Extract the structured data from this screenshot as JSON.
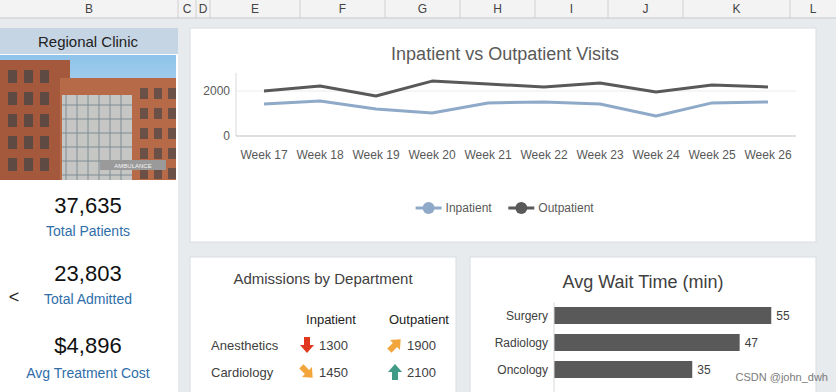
{
  "column_headers": [
    "B",
    "C",
    "D",
    "E",
    "F",
    "G",
    "H",
    "I",
    "J",
    "K",
    "L"
  ],
  "sidebar": {
    "title": "Regional Clinic",
    "image_sign": "AMBULANCE",
    "back_icon": "<",
    "kpis": [
      {
        "value": "37,635",
        "label": "Total Patients"
      },
      {
        "value": "23,803",
        "label": "Total Admitted"
      },
      {
        "value": "$4,896",
        "label": "Avg Treatment Cost"
      }
    ]
  },
  "chart_data": [
    {
      "type": "line",
      "title": "Inpatient vs Outpatient Visits",
      "categories": [
        "Week 17",
        "Week 18",
        "Week 19",
        "Week 20",
        "Week 21",
        "Week 22",
        "Week 23",
        "Week 24",
        "Week 25",
        "Week 26"
      ],
      "series": [
        {
          "name": "Inpatient",
          "color": "#8eaac8",
          "marker": "circle",
          "values": [
            1420,
            1560,
            1200,
            1020,
            1470,
            1510,
            1420,
            890,
            1470,
            1510
          ]
        },
        {
          "name": "Outpatient",
          "color": "#595959",
          "marker": "circle",
          "values": [
            2000,
            2220,
            1780,
            2440,
            2310,
            2180,
            2360,
            1960,
            2270,
            2180
          ]
        }
      ],
      "ylim": [
        0,
        2800
      ],
      "yticks": [
        0,
        2000
      ],
      "grid": false,
      "legend": "bottom"
    },
    {
      "type": "bar",
      "orientation": "horizontal",
      "title": "Avg Wait Time (min)",
      "categories": [
        "Surgery",
        "Radiology",
        "Oncology"
      ],
      "values": [
        55,
        47,
        35
      ],
      "color": "#595959",
      "xlim": [
        0,
        60
      ],
      "data_labels": true
    }
  ],
  "admissions_table": {
    "title": "Admissions by Department",
    "columns": [
      "Inpatient",
      "Outpatient"
    ],
    "rows": [
      {
        "department": "Anesthetics",
        "values": [
          1300,
          1900
        ]
      },
      {
        "department": "Cardiology",
        "values": [
          1450,
          2100
        ]
      }
    ]
  },
  "watermark": "CSDN @john_dwh"
}
